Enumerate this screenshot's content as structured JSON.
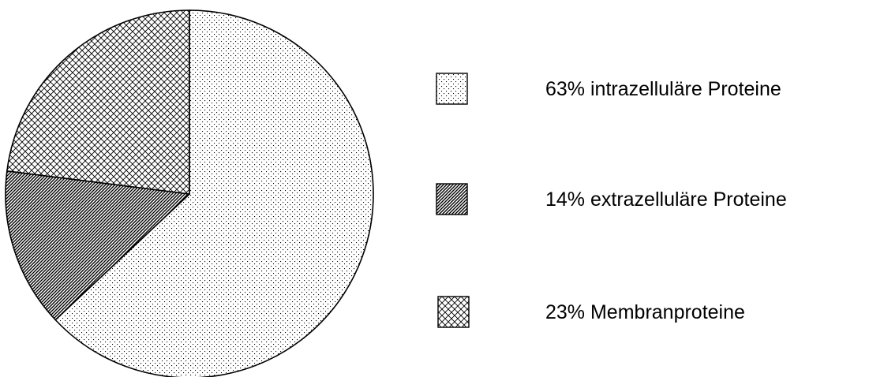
{
  "chart_data": {
    "type": "pie",
    "start": "12 o'clock",
    "direction": "clockwise",
    "slices": [
      {
        "label": "63% intrazelluläre Proteine",
        "value": 63,
        "pattern": "dots"
      },
      {
        "label": "14% extrazelluläre Proteine",
        "value": 14,
        "pattern": "diagonal-hatch"
      },
      {
        "label": "23% Membranproteine",
        "value": 23,
        "pattern": "crosshatch"
      }
    ],
    "legend_position": "right",
    "colors": {
      "stroke": "#000000",
      "background": "#ffffff"
    }
  }
}
